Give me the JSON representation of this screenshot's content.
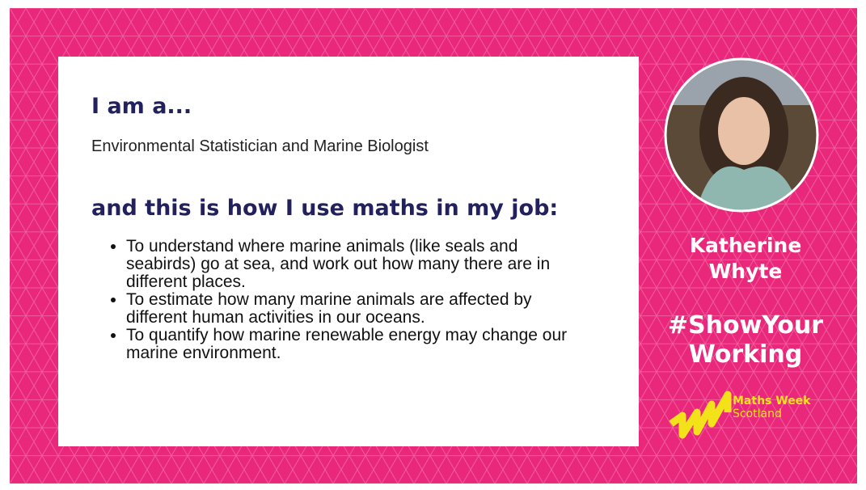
{
  "card": {
    "heading": "I am a...",
    "role": "Environmental Statistician and Marine Biologist",
    "subheading": "and this is how I use maths in my job:",
    "bullets": [
      "To understand where marine animals (like seals and seabirds) go at sea, and work out how many there are in different places.",
      "To estimate how many marine animals are affected by different human activities in our oceans.",
      "To quantify how marine renewable energy may change our marine environment."
    ]
  },
  "profile": {
    "name": "Katherine Whyte",
    "hashtag_lines": [
      "#ShowYour",
      "Working"
    ]
  },
  "logo": {
    "lines": [
      "Maths Week",
      "Scotland"
    ]
  }
}
